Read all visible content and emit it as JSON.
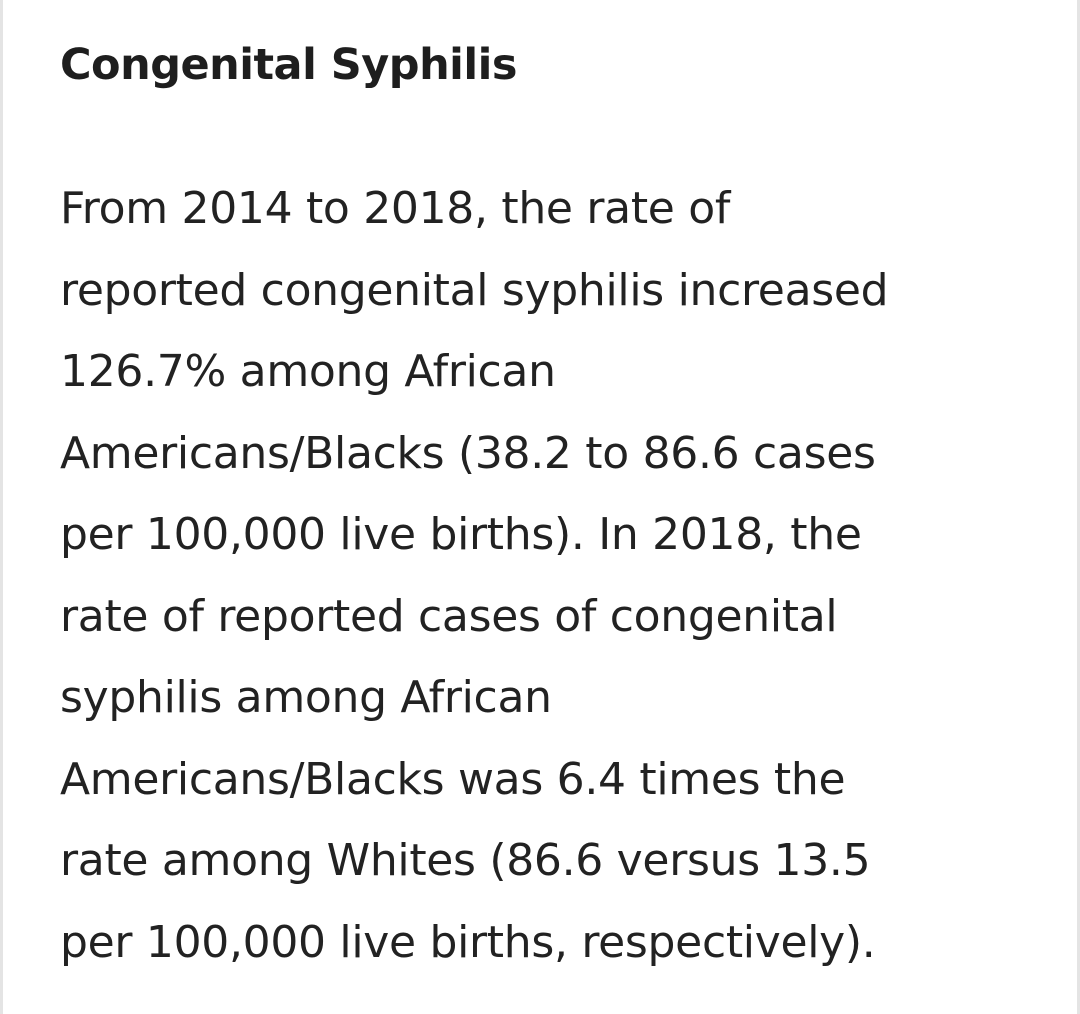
{
  "title": "Congenital Syphilis",
  "paragraph": {
    "lines": [
      "From 2014 to 2018, the rate of",
      "reported congenital syphilis increased",
      "126.7% among African",
      "Americans/Blacks (38.2 to 86.6 cases",
      "per 100,000 live births). In 2018, the",
      "rate of reported cases of congenital",
      "syphilis among African",
      "Americans/Blacks was 6.4 times the",
      "rate among Whites (86.6 versus 13.5",
      "per 100,000 live births, respectively)."
    ]
  }
}
